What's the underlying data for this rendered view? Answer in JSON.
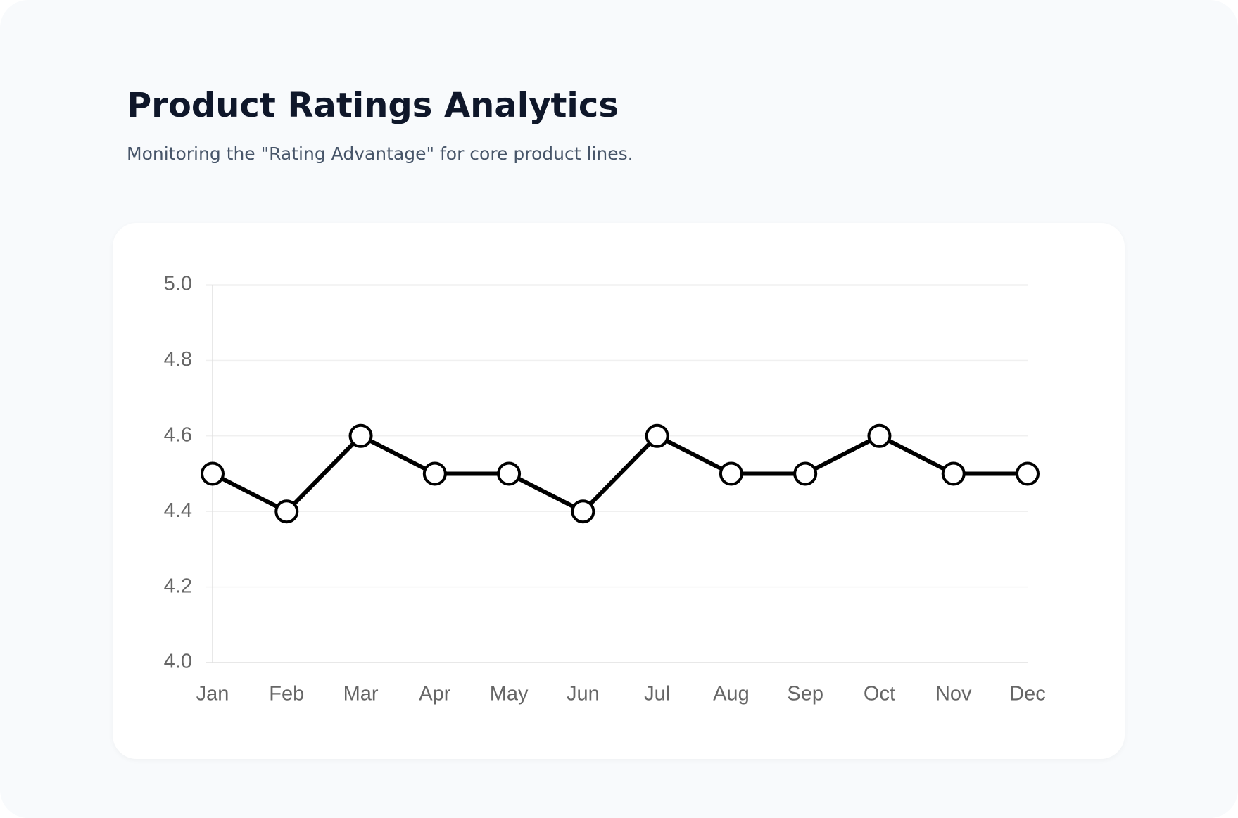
{
  "header": {
    "title": "Product Ratings Analytics",
    "subtitle": "Monitoring the \"Rating Advantage\" for core product lines."
  },
  "chart_data": {
    "type": "line",
    "categories": [
      "Jan",
      "Feb",
      "Mar",
      "Apr",
      "May",
      "Jun",
      "Jul",
      "Aug",
      "Sep",
      "Oct",
      "Nov",
      "Dec"
    ],
    "values": [
      4.5,
      4.4,
      4.6,
      4.5,
      4.5,
      4.4,
      4.6,
      4.5,
      4.5,
      4.6,
      4.5,
      4.5
    ],
    "color": "#000000",
    "ylim": [
      4.0,
      5.0
    ],
    "yticks": [
      {
        "value": 4.0,
        "label": "4.0"
      },
      4.2,
      4.4,
      4.6,
      4.8,
      {
        "value": 5.0,
        "label": "5.0"
      }
    ],
    "grid": true
  }
}
